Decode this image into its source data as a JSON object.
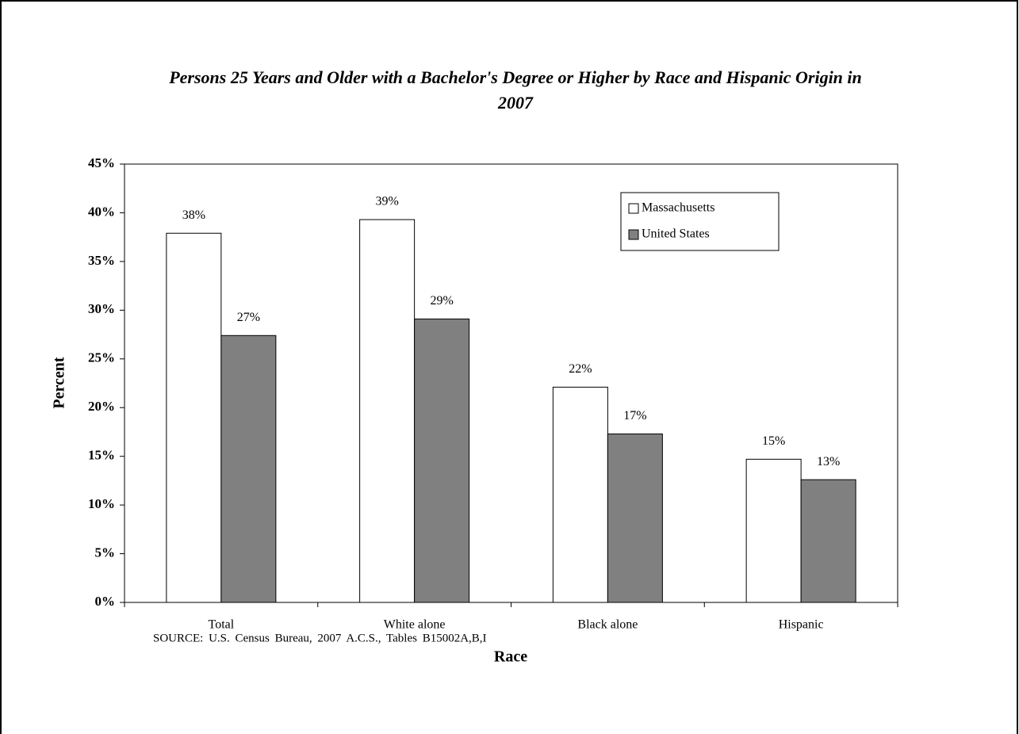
{
  "chart_data": {
    "type": "bar",
    "title": "Persons 25 Years and Older with a Bachelor's Degree or Higher by Race and Hispanic Origin in 2007",
    "xlabel": "Race",
    "ylabel": "Percent",
    "source": "SOURCE: U.S. Census Bureau, 2007 A.C.S., Tables B15002A,B,I",
    "categories": [
      "Total",
      "White alone",
      "Black alone",
      "Hispanic"
    ],
    "series": [
      {
        "name": "Massachusetts",
        "color": "#ffffff",
        "values": [
          37.9,
          39.3,
          22.1,
          14.7
        ],
        "value_labels": [
          "38%",
          "39%",
          "22%",
          "15%"
        ]
      },
      {
        "name": "United States",
        "color": "#808080",
        "values": [
          27.4,
          29.1,
          17.3,
          12.6
        ],
        "value_labels": [
          "27%",
          "29%",
          "17%",
          "13%"
        ]
      }
    ],
    "ylim": [
      0,
      45
    ],
    "yticks": [
      {
        "value": 0,
        "label": "0%"
      },
      {
        "value": 5,
        "label": "5%"
      },
      {
        "value": 10,
        "label": "10%"
      },
      {
        "value": 15,
        "label": "15%"
      },
      {
        "value": 20,
        "label": "20%"
      },
      {
        "value": 25,
        "label": "25%"
      },
      {
        "value": 30,
        "label": "30%"
      },
      {
        "value": 35,
        "label": "35%"
      },
      {
        "value": 40,
        "label": "40%"
      },
      {
        "value": 45,
        "label": "45%"
      }
    ],
    "legend": "upper right"
  }
}
